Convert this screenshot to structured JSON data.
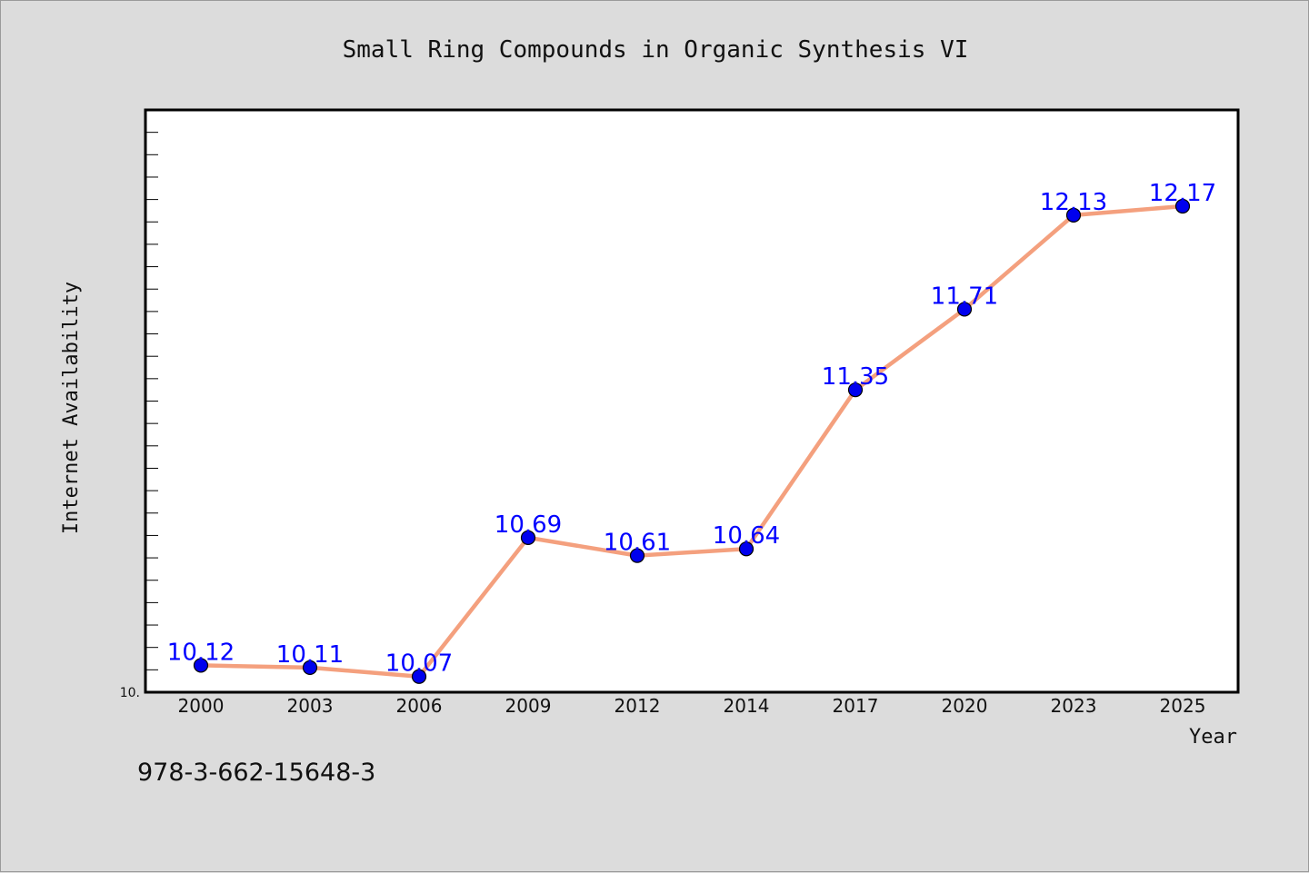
{
  "chart_data": {
    "type": "line",
    "title": "Small Ring Compounds in Organic Synthesis VI",
    "xlabel": "Year",
    "ylabel": "Internet Availability",
    "categories": [
      "2000",
      "2003",
      "2006",
      "2009",
      "2012",
      "2014",
      "2017",
      "2020",
      "2023",
      "2025"
    ],
    "series": [
      {
        "values": [
          10.12,
          10.11,
          10.07,
          10.69,
          10.61,
          10.64,
          11.35,
          11.71,
          12.13,
          12.17
        ]
      }
    ],
    "data_labels": [
      "10.12",
      "10.11",
      "10.07",
      "10.69",
      "10.61",
      "10.64",
      "11.35",
      "11.71",
      "12.13",
      "12.17"
    ],
    "ylim": [
      10.0,
      12.6
    ],
    "y_tick_label": "10.",
    "grid": false,
    "legend": "none",
    "colors": {
      "line": "#f4a07e",
      "marker": "#0000ee",
      "marker_edge": "#000000",
      "data_label": "#0000ff",
      "plot_background": "#ffffff",
      "figure_background": "#dcdcdc"
    }
  },
  "footer": {
    "isbn": "978-3-662-15648-3"
  }
}
